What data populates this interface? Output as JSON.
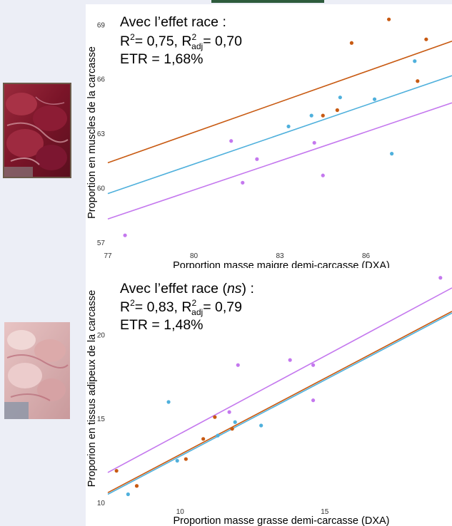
{
  "chart_data": [
    {
      "type": "scatter",
      "xlabel": "Porportion masse maigre demi-carcasse (DXA)",
      "ylabel": "Proportion en muscles de la carcasse",
      "xlim": [
        77,
        89
      ],
      "ylim": [
        56.7,
        69.7
      ],
      "xticks": [
        77,
        80,
        83,
        86
      ],
      "yticks": [
        57,
        60,
        63,
        66,
        69
      ],
      "xtick_labels": [
        "77",
        "80",
        "83",
        "86"
      ],
      "ytick_labels": [
        "57",
        "60",
        "63",
        "66",
        "69"
      ],
      "annotation": {
        "line1": "Avec l’effet race :",
        "r2_label": "R",
        "r2_value": "= 0,75,",
        "r2adj_label": "R",
        "r2adj_sub": "adj",
        "r2adj_value": "= 0,70",
        "etr": "ETR = 1,68%"
      },
      "series": [
        {
          "color": "#c85a12",
          "points": [
            [
              84.5,
              64.0
            ],
            [
              85.0,
              64.3
            ],
            [
              85.5,
              68.0
            ],
            [
              86.8,
              69.3
            ],
            [
              87.8,
              65.9
            ],
            [
              88.1,
              68.2
            ]
          ],
          "line": [
            [
              77,
              61.4
            ],
            [
              89,
              68.1
            ]
          ]
        },
        {
          "color": "#4fb0dc",
          "points": [
            [
              83.3,
              63.4
            ],
            [
              84.1,
              64.0
            ],
            [
              85.1,
              65.0
            ],
            [
              86.3,
              64.9
            ],
            [
              86.9,
              61.9
            ],
            [
              87.7,
              67.0
            ]
          ],
          "line": [
            [
              77,
              59.7
            ],
            [
              89,
              66.2
            ]
          ]
        },
        {
          "color": "#c478ee",
          "points": [
            [
              77.6,
              57.4
            ],
            [
              81.3,
              62.6
            ],
            [
              81.7,
              60.3
            ],
            [
              82.2,
              61.6
            ],
            [
              84.2,
              62.5
            ],
            [
              84.5,
              60.7
            ]
          ],
          "line": [
            [
              77,
              58.3
            ],
            [
              89,
              64.7
            ]
          ]
        }
      ]
    },
    {
      "type": "scatter",
      "xlabel": "Proportion masse grasse demi-carcasse (DXA)",
      "ylabel": "Proporion en tissus adipeux de la carcasse",
      "xlim": [
        7.5,
        19.4
      ],
      "ylim": [
        9.8,
        23.9
      ],
      "xticks": [
        10,
        15
      ],
      "yticks": [
        10,
        15,
        20
      ],
      "xtick_labels": [
        "10",
        "15"
      ],
      "ytick_labels": [
        "10",
        "15",
        "20"
      ],
      "annotation": {
        "line1": "Avec l’effet race (",
        "ns": "ns",
        "line1_end": ") :",
        "r2_label": "R",
        "r2_value": "= 0,83,",
        "r2adj_label": "R",
        "r2adj_sub": "adj",
        "r2adj_value": "= 0,79",
        "etr": "ETR = 1,48%"
      },
      "series": [
        {
          "color": "#c85a12",
          "points": [
            [
              7.8,
              11.9
            ],
            [
              8.5,
              11.0
            ],
            [
              10.2,
              12.6
            ],
            [
              10.8,
              13.8
            ],
            [
              11.2,
              15.1
            ],
            [
              11.8,
              14.4
            ]
          ],
          "line": [
            [
              7.5,
              10.6
            ],
            [
              19.4,
              21.4
            ]
          ]
        },
        {
          "color": "#4fb0dc",
          "points": [
            [
              8.2,
              10.5
            ],
            [
              9.6,
              16.0
            ],
            [
              9.9,
              12.5
            ],
            [
              11.3,
              14.0
            ],
            [
              11.9,
              14.8
            ],
            [
              12.8,
              14.6
            ]
          ],
          "line": [
            [
              7.5,
              10.5
            ],
            [
              19.4,
              21.3
            ]
          ]
        },
        {
          "color": "#c478ee",
          "points": [
            [
              11.7,
              15.4
            ],
            [
              12.0,
              18.2
            ],
            [
              13.8,
              18.5
            ],
            [
              14.6,
              18.2
            ],
            [
              14.6,
              16.1
            ],
            [
              19.0,
              23.4
            ]
          ],
          "line": [
            [
              7.5,
              11.8
            ],
            [
              19.4,
              22.8
            ]
          ]
        }
      ]
    }
  ]
}
